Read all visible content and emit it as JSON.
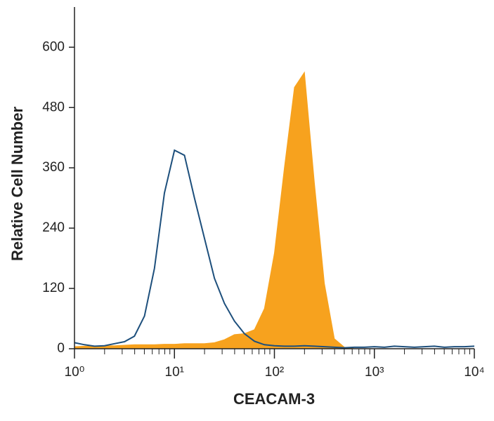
{
  "chart_data": {
    "type": "line",
    "x_label": "CEACAM-3",
    "y_label": "Relative Cell Number",
    "x": [
      1,
      1.259,
      1.585,
      1.995,
      2.512,
      3.162,
      3.981,
      5.012,
      6.31,
      7.943,
      10,
      12.59,
      15.85,
      19.95,
      25.12,
      31.62,
      39.81,
      50.12,
      63.1,
      79.43,
      100,
      125.9,
      158.5,
      199.5,
      251.2,
      316.2,
      398.1,
      501.2,
      631,
      794.3,
      1000,
      1259,
      1585,
      1995,
      2512,
      3162,
      3981,
      5012,
      6310,
      7943,
      10000
    ],
    "series": [
      {
        "color": "#f7a21e",
        "fill": true,
        "values": [
          4,
          5,
          5,
          6,
          6,
          7,
          8,
          8,
          8,
          9,
          9,
          10,
          10,
          10,
          12,
          18,
          28,
          30,
          38,
          80,
          190,
          360,
          520,
          550,
          330,
          130,
          20,
          3,
          0,
          0,
          0,
          0,
          0,
          0,
          0,
          0,
          0,
          0,
          0,
          0,
          0
        ]
      },
      {
        "color": "#1d4f7c",
        "fill": false,
        "values": [
          12,
          8,
          5,
          6,
          10,
          14,
          25,
          65,
          160,
          310,
          395,
          385,
          300,
          220,
          140,
          90,
          55,
          30,
          15,
          8,
          6,
          5,
          5,
          6,
          5,
          4,
          3,
          2,
          3,
          3,
          4,
          3,
          5,
          4,
          3,
          4,
          5,
          3,
          4,
          4,
          5
        ]
      }
    ],
    "x_log": true,
    "xlim": [
      1,
      10000
    ],
    "xticks": [
      {
        "value": 1,
        "label": "10⁰"
      },
      {
        "value": 10,
        "label": "10¹"
      },
      {
        "value": 100,
        "label": "10²"
      },
      {
        "value": 1000,
        "label": "10³"
      },
      {
        "value": 10000,
        "label": "10⁴"
      }
    ],
    "xminor_ticks": [
      2,
      3,
      4,
      5,
      6,
      7,
      8,
      9,
      20,
      30,
      40,
      50,
      60,
      70,
      80,
      90,
      200,
      300,
      400,
      500,
      600,
      700,
      800,
      900,
      2000,
      3000,
      4000,
      5000,
      6000,
      7000,
      8000,
      9000
    ],
    "ylim": [
      0,
      680
    ],
    "yticks": [
      0,
      120,
      240,
      360,
      480,
      600
    ]
  }
}
